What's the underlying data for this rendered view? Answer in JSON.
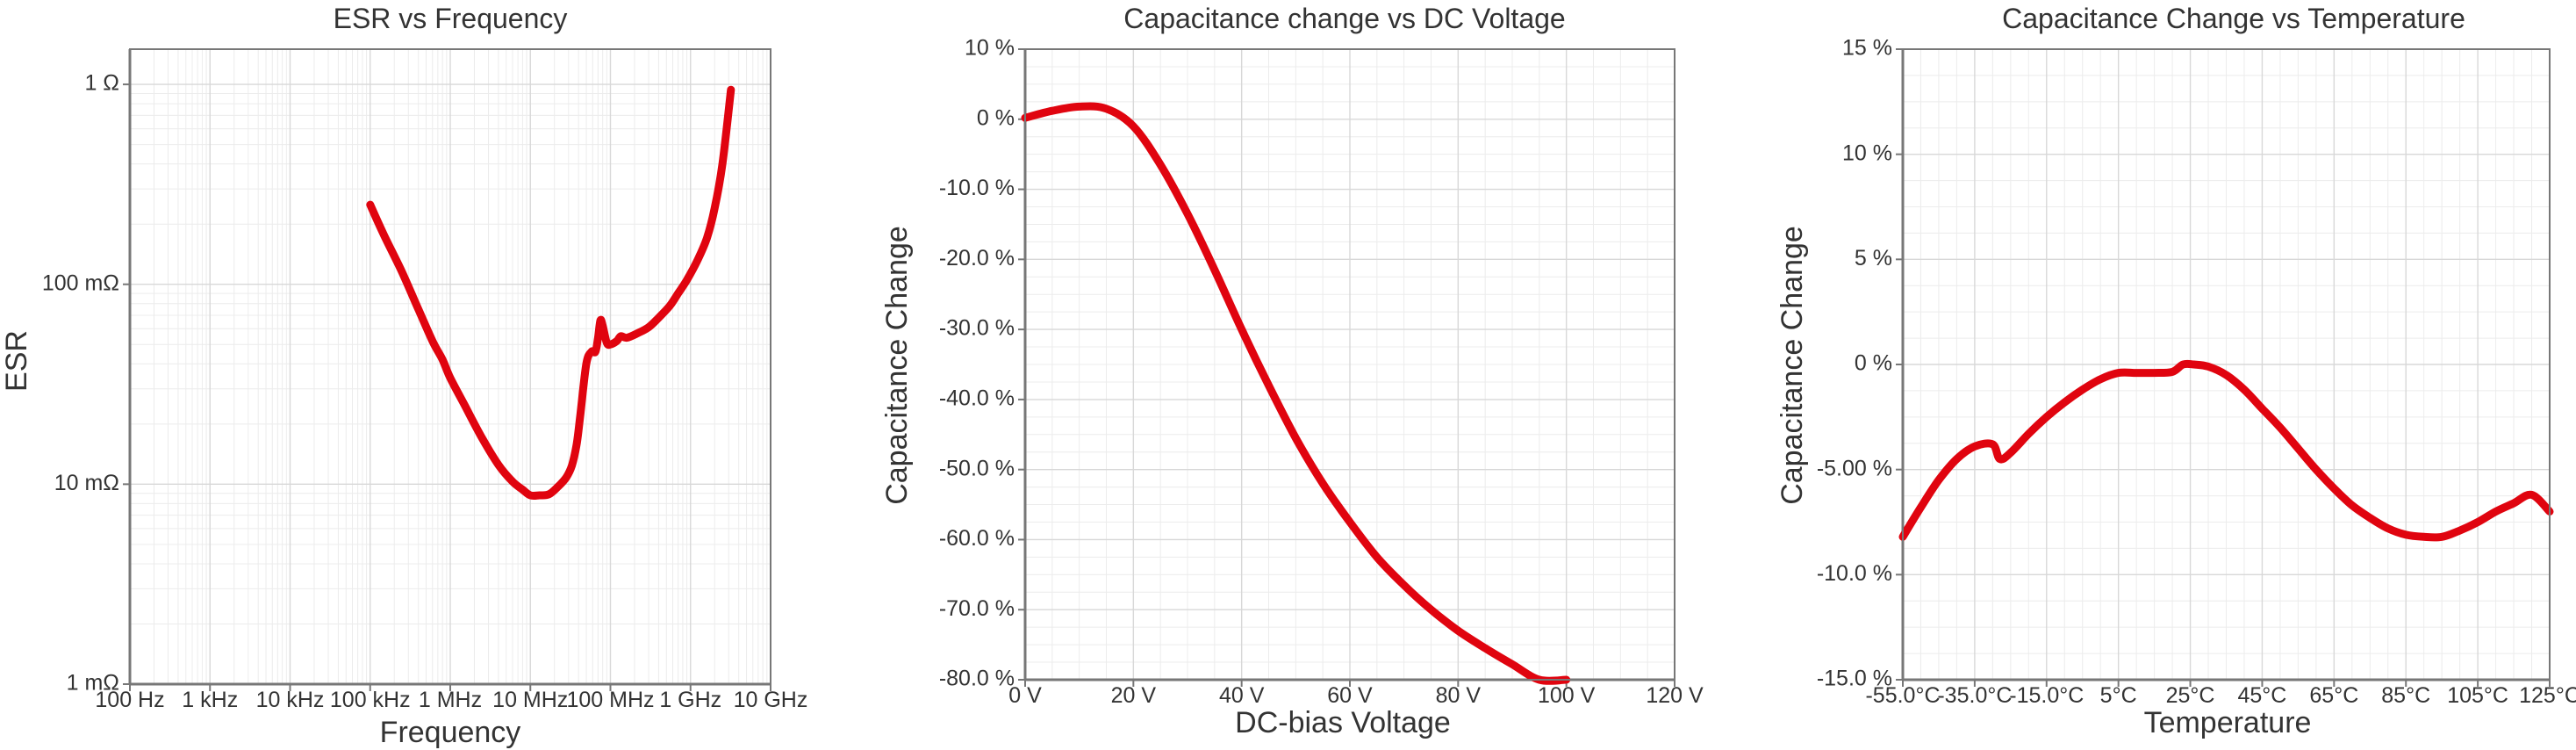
{
  "colors": {
    "series": "#e0040f",
    "grid": "#d8d8d8",
    "axis": "#777777",
    "text": "#333333"
  },
  "chart_data": [
    {
      "type": "line",
      "title": "ESR vs Frequency",
      "xlabel": "Frequency",
      "ylabel": "ESR",
      "x_scale": "log",
      "y_scale": "log",
      "xlim": [
        100,
        10000000000
      ],
      "ylim": [
        0.001,
        1.5
      ],
      "x_ticks": [
        {
          "value": 100,
          "label": "100 Hz"
        },
        {
          "value": 1000,
          "label": "1 kHz"
        },
        {
          "value": 10000,
          "label": "10 kHz"
        },
        {
          "value": 100000,
          "label": "100 kHz"
        },
        {
          "value": 1000000,
          "label": "1 MHz"
        },
        {
          "value": 10000000,
          "label": "10 MHz"
        },
        {
          "value": 100000000,
          "label": "100 MHz"
        },
        {
          "value": 1000000000,
          "label": "1 GHz"
        },
        {
          "value": 10000000000,
          "label": "10 GHz"
        }
      ],
      "y_ticks": [
        {
          "value": 0.001,
          "label": "1 mΩ"
        },
        {
          "value": 0.01,
          "label": "10 mΩ"
        },
        {
          "value": 0.1,
          "label": "100 mΩ"
        },
        {
          "value": 1,
          "label": "1 Ω"
        }
      ],
      "grid": true,
      "minor_grid": true,
      "series": [
        {
          "x": [
            100000,
            150000,
            250000,
            400000,
            600000,
            800000,
            1000000,
            1500000,
            2500000,
            4000000,
            6000000,
            8000000,
            10000000,
            13000000,
            17000000,
            22000000,
            28000000,
            33000000,
            38000000,
            42000000,
            50000000,
            58000000,
            65000000,
            70000000,
            75000000,
            80000000,
            90000000,
            100000000,
            120000000,
            135000000,
            160000000,
            220000000,
            300000000,
            400000000,
            550000000,
            700000000,
            900000000,
            1200000000,
            1600000000,
            2000000000,
            2500000000,
            3200000000
          ],
          "y": [
            0.25,
            0.175,
            0.115,
            0.075,
            0.052,
            0.042,
            0.034,
            0.025,
            0.017,
            0.0125,
            0.0103,
            0.0094,
            0.0088,
            0.0088,
            0.0089,
            0.0097,
            0.0108,
            0.0124,
            0.016,
            0.022,
            0.04,
            0.046,
            0.046,
            0.054,
            0.066,
            0.062,
            0.051,
            0.05,
            0.052,
            0.055,
            0.054,
            0.057,
            0.061,
            0.068,
            0.078,
            0.09,
            0.105,
            0.13,
            0.17,
            0.24,
            0.4,
            0.94
          ]
        }
      ]
    },
    {
      "type": "line",
      "title": "Capacitance change vs DC Voltage",
      "xlabel": "DC-bias Voltage",
      "ylabel": "Capacitance Change",
      "xlim": [
        0,
        120
      ],
      "ylim": [
        -80,
        10
      ],
      "x_ticks": [
        {
          "value": 0,
          "label": "0 V"
        },
        {
          "value": 20,
          "label": "20 V"
        },
        {
          "value": 40,
          "label": "40 V"
        },
        {
          "value": 60,
          "label": "60 V"
        },
        {
          "value": 80,
          "label": "80 V"
        },
        {
          "value": 100,
          "label": "100 V"
        },
        {
          "value": 120,
          "label": "120 V"
        }
      ],
      "y_ticks": [
        {
          "value": 10,
          "label": "10 %"
        },
        {
          "value": 0,
          "label": "0 %"
        },
        {
          "value": -10,
          "label": "-10.0 %"
        },
        {
          "value": -20,
          "label": "-20.0 %"
        },
        {
          "value": -30,
          "label": "-30.0 %"
        },
        {
          "value": -40,
          "label": "-40.0 %"
        },
        {
          "value": -50,
          "label": "-50.0 %"
        },
        {
          "value": -60,
          "label": "-60.0 %"
        },
        {
          "value": -70,
          "label": "-70.0 %"
        },
        {
          "value": -80,
          "label": "-80.0 %"
        }
      ],
      "grid": true,
      "minor_grid": true,
      "series": [
        {
          "x": [
            0,
            5,
            10,
            15,
            20,
            25,
            30,
            35,
            40,
            45,
            50,
            55,
            60,
            65,
            70,
            75,
            80,
            85,
            90,
            95,
            100
          ],
          "y": [
            0.2,
            1.2,
            1.8,
            1.5,
            -1.0,
            -6.5,
            -13.5,
            -21.5,
            -30.0,
            -38.0,
            -45.5,
            -52.0,
            -57.5,
            -62.5,
            -66.5,
            -70.0,
            -73.0,
            -75.5,
            -77.8,
            -80.0,
            -82.0
          ]
        }
      ]
    },
    {
      "type": "line",
      "title": "Capacitance Change vs Temperature",
      "xlabel": "Temperature",
      "ylabel": "Capacitance Change",
      "xlim": [
        -55,
        125
      ],
      "ylim": [
        -15,
        15
      ],
      "x_ticks": [
        {
          "value": -55,
          "label": "-55.0°C"
        },
        {
          "value": -35,
          "label": "-35.0°C"
        },
        {
          "value": -15,
          "label": "-15.0°C"
        },
        {
          "value": 5,
          "label": "5°C"
        },
        {
          "value": 25,
          "label": "25°C"
        },
        {
          "value": 45,
          "label": "45°C"
        },
        {
          "value": 65,
          "label": "65°C"
        },
        {
          "value": 85,
          "label": "85°C"
        },
        {
          "value": 105,
          "label": "105°C"
        },
        {
          "value": 125,
          "label": "125°C"
        }
      ],
      "y_ticks": [
        {
          "value": 15,
          "label": "15 %"
        },
        {
          "value": 10,
          "label": "10 %"
        },
        {
          "value": 5,
          "label": "5 %"
        },
        {
          "value": 0,
          "label": "0 %"
        },
        {
          "value": -5,
          "label": "-5.00 %"
        },
        {
          "value": -10,
          "label": "-10.0 %"
        },
        {
          "value": -15,
          "label": "-15.0 %"
        }
      ],
      "grid": true,
      "minor_grid": true,
      "series": [
        {
          "x": [
            -55,
            -50,
            -45,
            -40,
            -35,
            -30,
            -28,
            -25,
            -20,
            -15,
            -10,
            -5,
            0,
            5,
            10,
            15,
            20,
            23,
            26,
            30,
            35,
            40,
            45,
            50,
            55,
            60,
            65,
            70,
            75,
            80,
            85,
            90,
            95,
            100,
            105,
            110,
            115,
            120,
            125
          ],
          "y": [
            -8.2,
            -6.8,
            -5.5,
            -4.5,
            -3.9,
            -3.8,
            -4.5,
            -4.2,
            -3.3,
            -2.5,
            -1.8,
            -1.2,
            -0.7,
            -0.4,
            -0.4,
            -0.4,
            -0.35,
            0.0,
            0.0,
            -0.1,
            -0.5,
            -1.2,
            -2.1,
            -3.0,
            -4.0,
            -5.0,
            -5.9,
            -6.7,
            -7.3,
            -7.8,
            -8.1,
            -8.2,
            -8.2,
            -7.9,
            -7.5,
            -7.0,
            -6.6,
            -6.2,
            -7.0
          ]
        }
      ]
    }
  ]
}
